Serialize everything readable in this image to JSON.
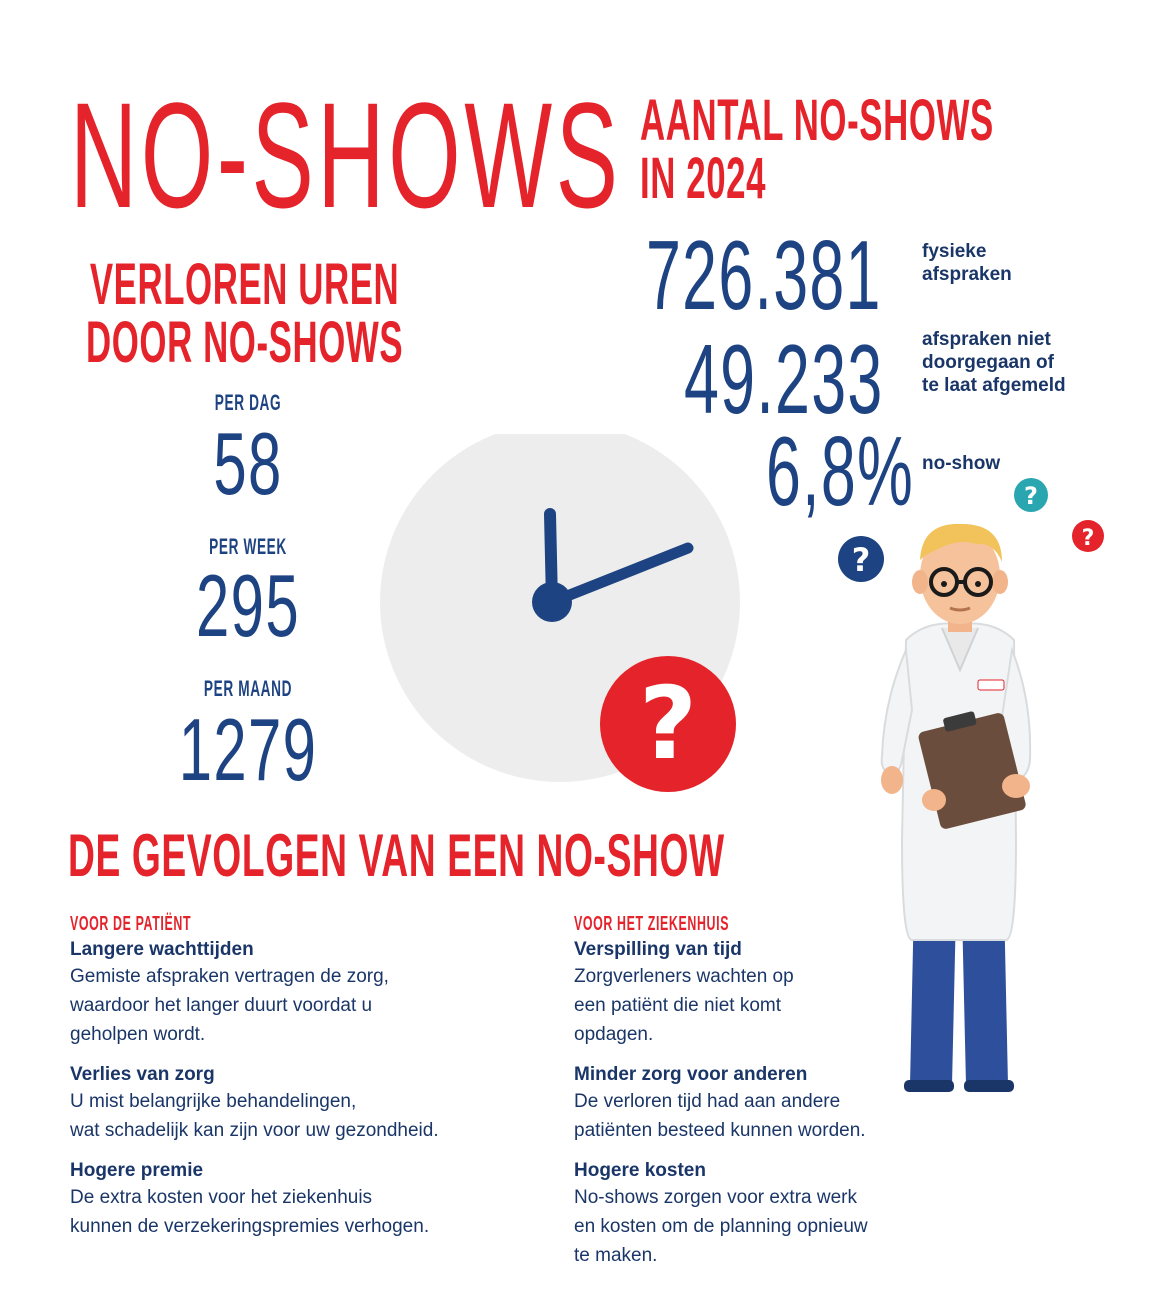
{
  "title": "NO-SHOWS",
  "count": {
    "heading_line1": "AANTAL NO-SHOWS",
    "heading_line2": "IN 2024",
    "stats": [
      {
        "value": "726.381",
        "label": "fysieke\nafspraken"
      },
      {
        "value": "49.233",
        "label": "afspraken niet\ndoorgegaan of\nte laat afgemeld"
      },
      {
        "value": "6,8%",
        "label": "no-show"
      }
    ]
  },
  "lost_hours": {
    "heading_line1": "VERLOREN UREN",
    "heading_line2": "DOOR NO-SHOWS",
    "per_day_label": "PER DAG",
    "per_day_value": "58",
    "per_week_label": "PER WEEK",
    "per_week_value": "295",
    "per_month_label": "PER MAAND",
    "per_month_value": "1279"
  },
  "consequences": {
    "heading": "DE GEVOLGEN VAN EEN NO-SHOW",
    "patient": {
      "title": "VOOR DE PATIËNT",
      "items": [
        {
          "title": "Langere wachttijden",
          "text": "Gemiste afspraken vertragen de zorg,\nwaardoor het langer duurt voordat u\ngeholpen wordt."
        },
        {
          "title": "Verlies van zorg",
          "text": "U mist belangrijke behandelingen,\nwat schadelijk kan zijn voor uw gezondheid."
        },
        {
          "title": "Hogere premie",
          "text": "De extra kosten voor het ziekenhuis\nkunnen de verzekeringspremies verhogen."
        }
      ]
    },
    "hospital": {
      "title": "VOOR HET ZIEKENHUIS",
      "items": [
        {
          "title": "Verspilling van tijd",
          "text": "Zorgverleners wachten op\neen patiënt die niet komt\nopdagen."
        },
        {
          "title": "Minder zorg voor anderen",
          "text": "De verloren tijd had aan andere\npatiënten besteed kunnen worden."
        },
        {
          "title": "Hogere kosten",
          "text": "No-shows zorgen voor extra werk\nen kosten om de planning opnieuw\nte maken."
        }
      ]
    }
  },
  "colors": {
    "red": "#e4232b",
    "blue": "#1e4382",
    "navy": "#1a3668",
    "clock_face": "#ecedec",
    "teal": "#2aa6b1"
  },
  "illustrations": [
    "clock-icon",
    "question-mark-icon",
    "doctor-illustration",
    "clipboard-icon"
  ]
}
